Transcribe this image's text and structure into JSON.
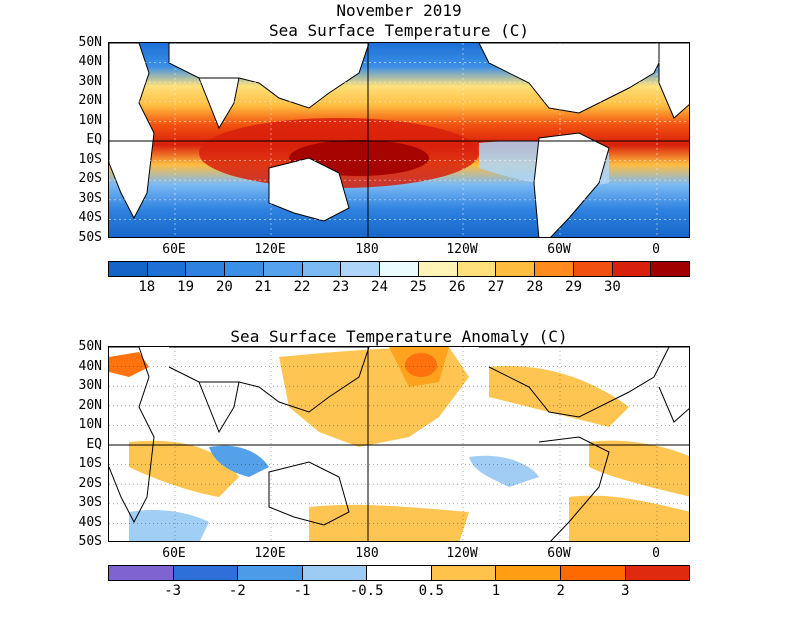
{
  "top": {
    "title_line1": "November 2019",
    "title_line2": "Sea Surface Temperature (C)",
    "colorbar_labels": [
      "18",
      "19",
      "20",
      "21",
      "22",
      "23",
      "24",
      "25",
      "26",
      "27",
      "28",
      "29",
      "30"
    ],
    "colorbar_colors": [
      "#1565c8",
      "#1e6fd6",
      "#2f82e0",
      "#3b8fe6",
      "#56a2ee",
      "#7cbaf3",
      "#aed6f8",
      "#eafcff",
      "#fff4b8",
      "#ffe07a",
      "#ffbd3f",
      "#ff8a1e",
      "#f25010",
      "#d8200c",
      "#a00000"
    ]
  },
  "bottom": {
    "title": "Sea Surface Temperature Anomaly (C)",
    "colorbar_labels": [
      "-3",
      "-2",
      "-1",
      "-0.5",
      "0.5",
      "1",
      "2",
      "3"
    ],
    "colorbar_colors": [
      "#7f63d0",
      "#2f6fd9",
      "#4b9be8",
      "#9ccbf4",
      "#ffffff",
      "#ffc24a",
      "#ff9e12",
      "#ff6a00",
      "#e02a10"
    ]
  },
  "y_axis_labels": [
    "50N",
    "40N",
    "30N",
    "20N",
    "10N",
    "EQ",
    "10S",
    "20S",
    "30S",
    "40S",
    "50S"
  ],
  "x_axis_labels": [
    "60E",
    "120E",
    "180",
    "120W",
    "60W",
    "0"
  ]
}
